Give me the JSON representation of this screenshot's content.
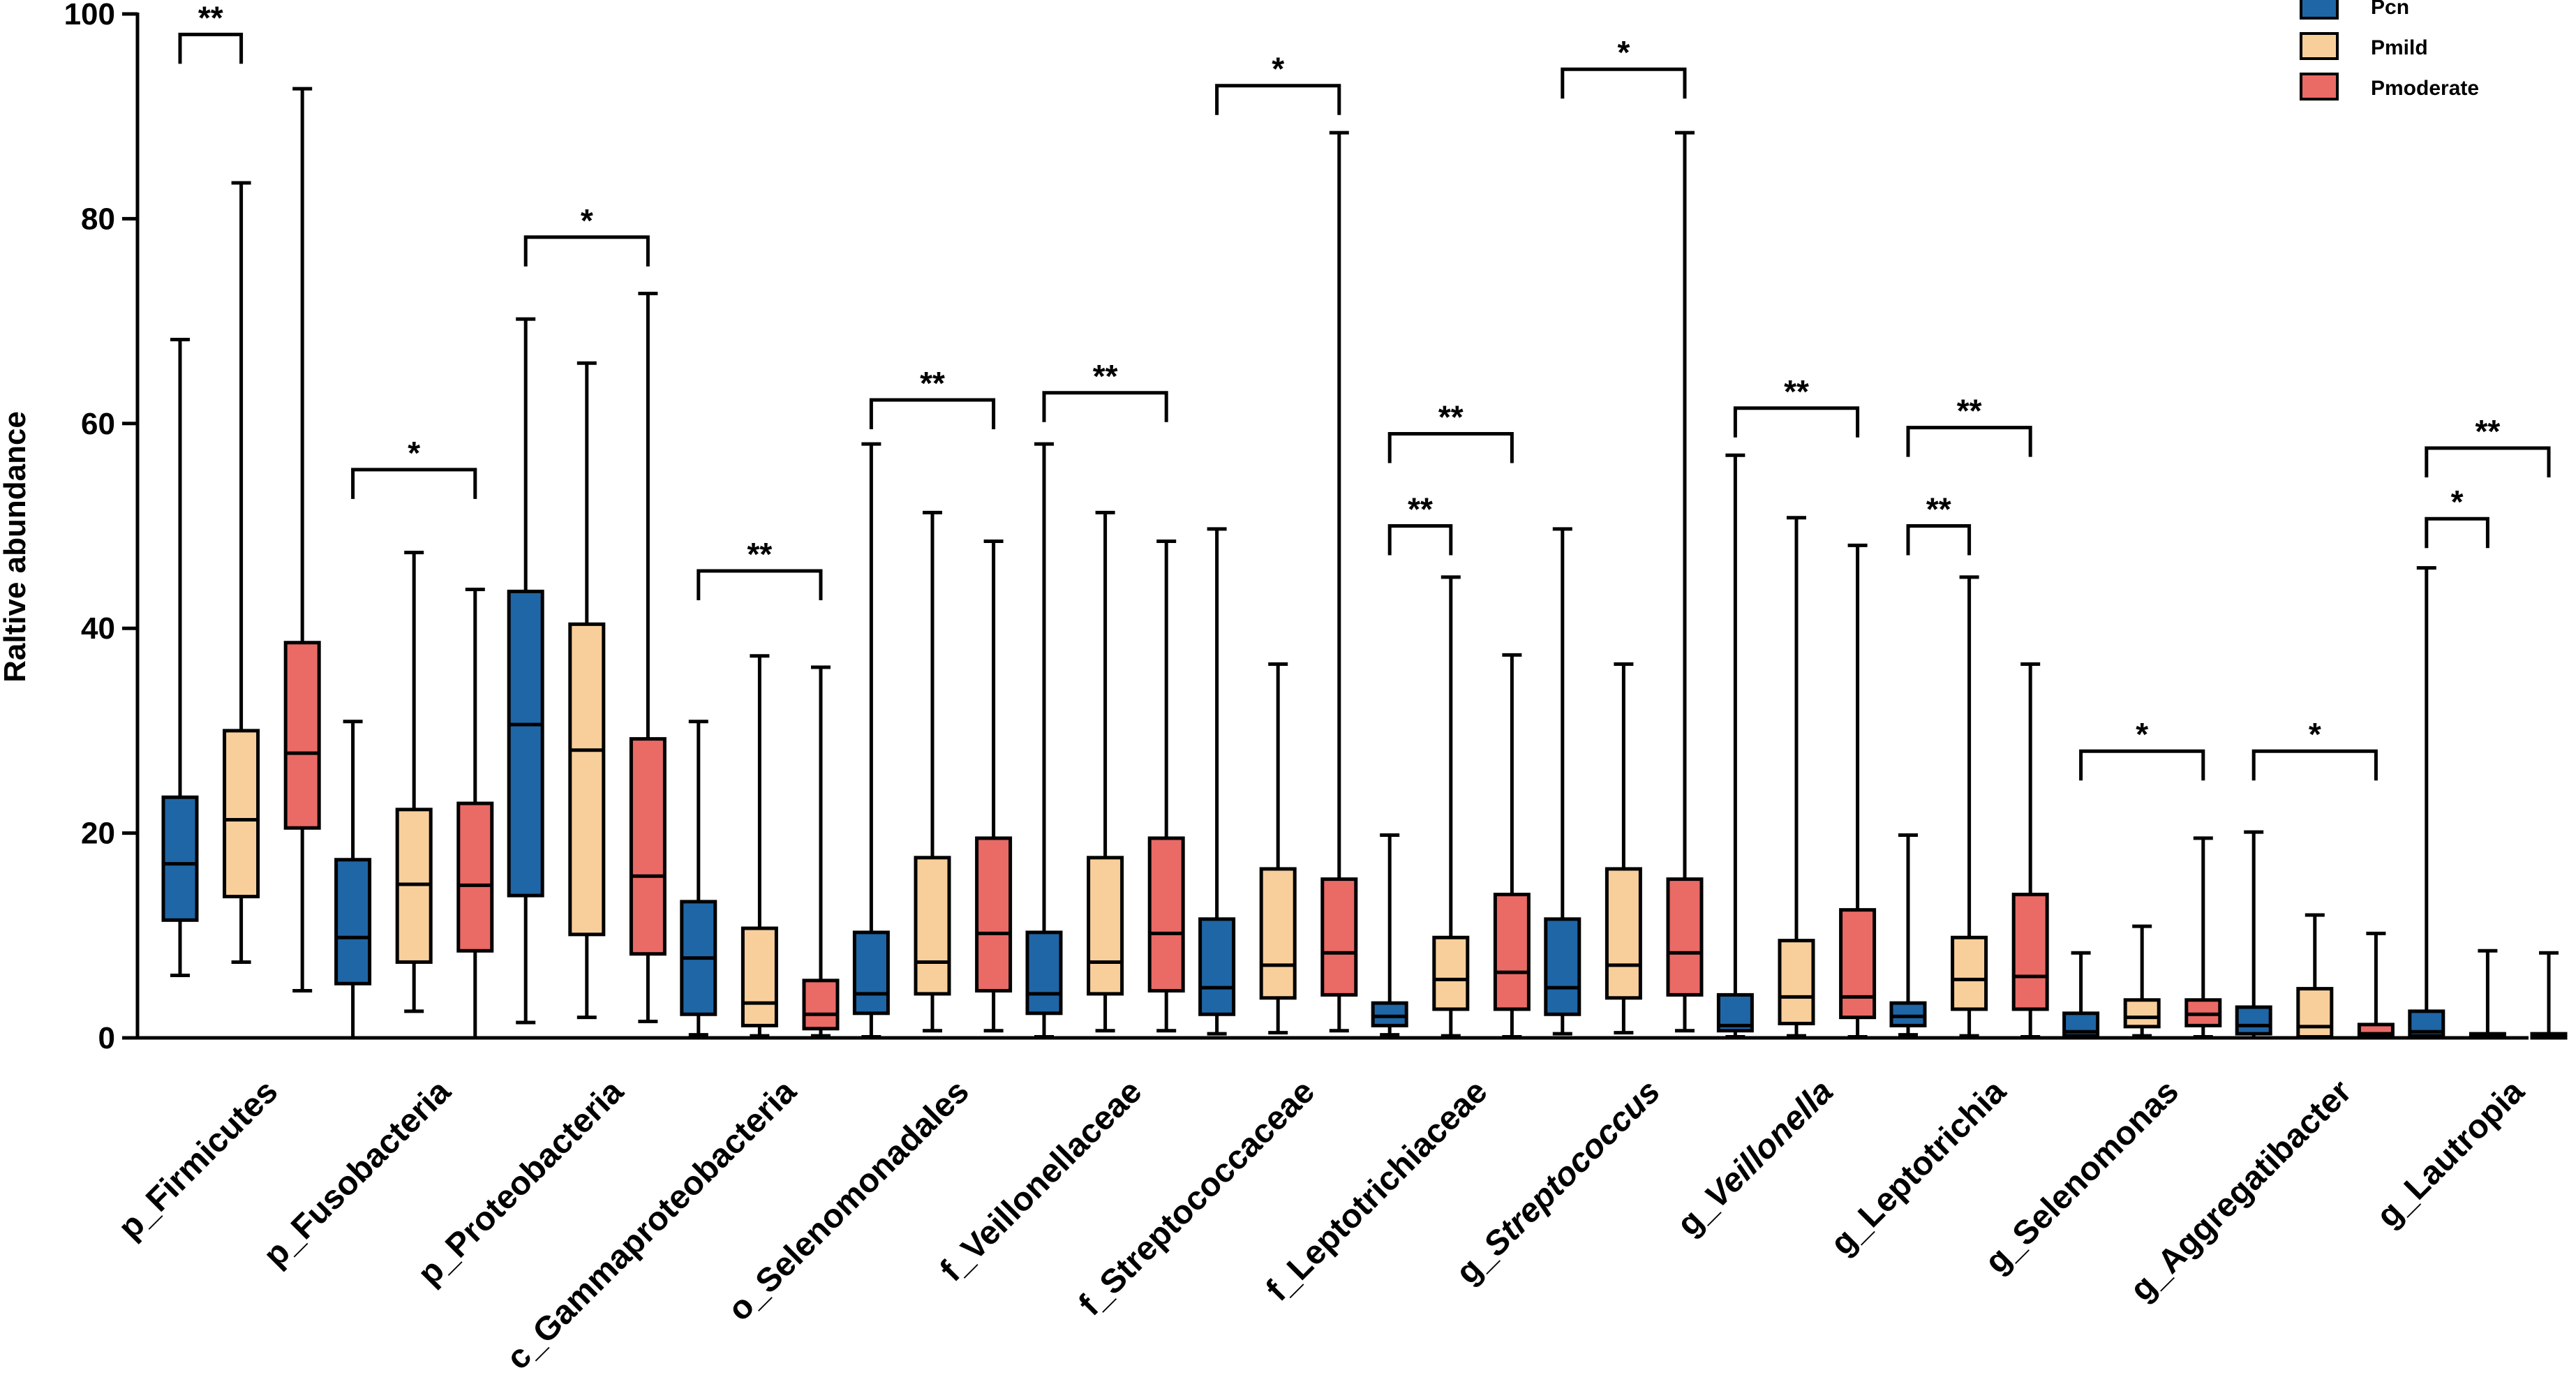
{
  "chart_data": {
    "type": "boxplot",
    "title": "",
    "xlabel": "",
    "ylabel": "Raltive abundance",
    "ylim": [
      0,
      100
    ],
    "yticks": [
      0,
      20,
      40,
      60,
      80,
      100
    ],
    "grid": false,
    "legend_position": "top-right",
    "series": [
      {
        "name": "Pcn",
        "color": "#1f66a6"
      },
      {
        "name": "Pmild",
        "color": "#f8cf9b"
      },
      {
        "name": "Pmoderate",
        "color": "#ea6a66"
      }
    ],
    "groups": [
      {
        "label": "p_Firmicutes",
        "italic": "",
        "boxes": [
          [
            6.1,
            11.5,
            17,
            23.5,
            68.2
          ],
          [
            7.4,
            13.8,
            21.3,
            30,
            83.5
          ],
          [
            4.6,
            20.5,
            27.8,
            38.6,
            92.7
          ]
        ],
        "brackets": [
          {
            "from": 0,
            "to": 1,
            "y": 98,
            "label": "**"
          }
        ]
      },
      {
        "label": "p_Fusobacteria",
        "italic": "",
        "boxes": [
          [
            0,
            5.3,
            9.8,
            17.4,
            30.9
          ],
          [
            2.6,
            7.4,
            15,
            22.3,
            47.4
          ],
          [
            0,
            8.5,
            14.9,
            22.9,
            43.8
          ]
        ],
        "brackets": [
          {
            "from": 0,
            "to": 2,
            "y": 55.5,
            "label": "*"
          }
        ]
      },
      {
        "label": "p_Proteobacteria",
        "italic": "",
        "boxes": [
          [
            1.5,
            13.9,
            30.6,
            43.6,
            70.2
          ],
          [
            2,
            10.1,
            28.1,
            40.4,
            65.9
          ],
          [
            1.6,
            8.2,
            15.8,
            29.2,
            72.7
          ]
        ],
        "brackets": [
          {
            "from": 0,
            "to": 2,
            "y": 78.2,
            "label": "*"
          }
        ]
      },
      {
        "label": "c_Gammaproteobacteria",
        "italic": "",
        "boxes": [
          [
            0.3,
            2.3,
            7.8,
            13.3,
            30.9
          ],
          [
            0.2,
            1.2,
            3.4,
            10.7,
            37.3
          ],
          [
            0.2,
            0.9,
            2.3,
            5.6,
            36.2
          ]
        ],
        "brackets": [
          {
            "from": 0,
            "to": 2,
            "y": 45.6,
            "label": "**"
          }
        ]
      },
      {
        "label": "o_Selenomonadales",
        "italic": "",
        "boxes": [
          [
            0.1,
            2.4,
            4.3,
            10.3,
            58
          ],
          [
            0.7,
            4.3,
            7.4,
            17.6,
            51.3
          ],
          [
            0.7,
            4.6,
            10.2,
            19.5,
            48.5
          ]
        ],
        "brackets": [
          {
            "from": 0,
            "to": 2,
            "y": 62.3,
            "label": "**"
          }
        ]
      },
      {
        "label": "f_Veillonellaceae",
        "italic": "",
        "boxes": [
          [
            0.1,
            2.4,
            4.3,
            10.3,
            58
          ],
          [
            0.7,
            4.3,
            7.4,
            17.6,
            51.3
          ],
          [
            0.7,
            4.6,
            10.2,
            19.5,
            48.5
          ]
        ],
        "brackets": [
          {
            "from": 0,
            "to": 2,
            "y": 63,
            "label": "**"
          }
        ]
      },
      {
        "label": "f_Streptococcaceae",
        "italic": "",
        "boxes": [
          [
            0.4,
            2.3,
            4.9,
            11.6,
            49.7
          ],
          [
            0.5,
            3.9,
            7.1,
            16.5,
            36.5
          ],
          [
            0.7,
            4.2,
            8.3,
            15.5,
            88.4
          ]
        ],
        "brackets": [
          {
            "from": 0,
            "to": 2,
            "y": 93,
            "label": "*"
          }
        ]
      },
      {
        "label": "f_Leptotrichiaceae",
        "italic": "",
        "boxes": [
          [
            0.3,
            1.2,
            2.1,
            3.4,
            19.8
          ],
          [
            0.2,
            2.8,
            5.7,
            9.8,
            45
          ],
          [
            0.1,
            2.8,
            6.4,
            14,
            37.4
          ]
        ],
        "brackets": [
          {
            "from": 0,
            "to": 1,
            "y": 50,
            "label": "**"
          },
          {
            "from": 0,
            "to": 2,
            "y": 59,
            "label": "**"
          }
        ]
      },
      {
        "label": "g_",
        "italic": "Streptococcus",
        "boxes": [
          [
            0.4,
            2.3,
            4.9,
            11.6,
            49.7
          ],
          [
            0.5,
            3.9,
            7.1,
            16.5,
            36.5
          ],
          [
            0.7,
            4.2,
            8.3,
            15.5,
            88.4
          ]
        ],
        "brackets": [
          {
            "from": 0,
            "to": 2,
            "y": 94.6,
            "label": "*"
          }
        ]
      },
      {
        "label": "g_",
        "italic": "Veillonella",
        "boxes": [
          [
            0.1,
            0.7,
            1.2,
            4.2,
            56.9
          ],
          [
            0.2,
            1.4,
            4,
            9.5,
            50.8
          ],
          [
            0.1,
            2,
            4,
            12.5,
            48.1
          ]
        ],
        "brackets": [
          {
            "from": 0,
            "to": 2,
            "y": 61.5,
            "label": "**"
          }
        ]
      },
      {
        "label": "g_Leptotrichia",
        "italic": "",
        "boxes": [
          [
            0.3,
            1.2,
            2.1,
            3.4,
            19.8
          ],
          [
            0.2,
            2.8,
            5.7,
            9.8,
            45
          ],
          [
            0.1,
            2.8,
            6,
            14,
            36.5
          ]
        ],
        "brackets": [
          {
            "from": 0,
            "to": 1,
            "y": 50,
            "label": "**"
          },
          {
            "from": 0,
            "to": 2,
            "y": 59.6,
            "label": "**"
          }
        ]
      },
      {
        "label": "g_Selenomonas",
        "italic": "",
        "boxes": [
          [
            0,
            0.2,
            0.6,
            2.4,
            8.3
          ],
          [
            0.2,
            1.1,
            2,
            3.7,
            10.9
          ],
          [
            0.1,
            1.2,
            2.3,
            3.7,
            19.5
          ]
        ],
        "brackets": [
          {
            "from": 0,
            "to": 2,
            "y": 28,
            "label": "*"
          }
        ]
      },
      {
        "label": "g_Aggregatibacter",
        "italic": "",
        "boxes": [
          [
            0,
            0.4,
            1.2,
            3,
            20.1
          ],
          [
            0,
            0.1,
            1.1,
            4.8,
            12
          ],
          [
            0,
            0.1,
            0.4,
            1.3,
            10.2
          ]
        ],
        "brackets": [
          {
            "from": 0,
            "to": 2,
            "y": 28,
            "label": "*"
          }
        ]
      },
      {
        "label": "g_Lautropia",
        "italic": "",
        "boxes": [
          [
            0,
            0.2,
            0.6,
            2.6,
            45.9
          ],
          [
            0,
            0,
            0.1,
            0.4,
            8.5
          ],
          [
            0,
            0,
            0.1,
            0.4,
            8.3
          ]
        ],
        "brackets": [
          {
            "from": 0,
            "to": 1,
            "y": 50.7,
            "label": "*"
          },
          {
            "from": 0,
            "to": 2,
            "y": 57.6,
            "label": "**"
          }
        ]
      }
    ]
  }
}
